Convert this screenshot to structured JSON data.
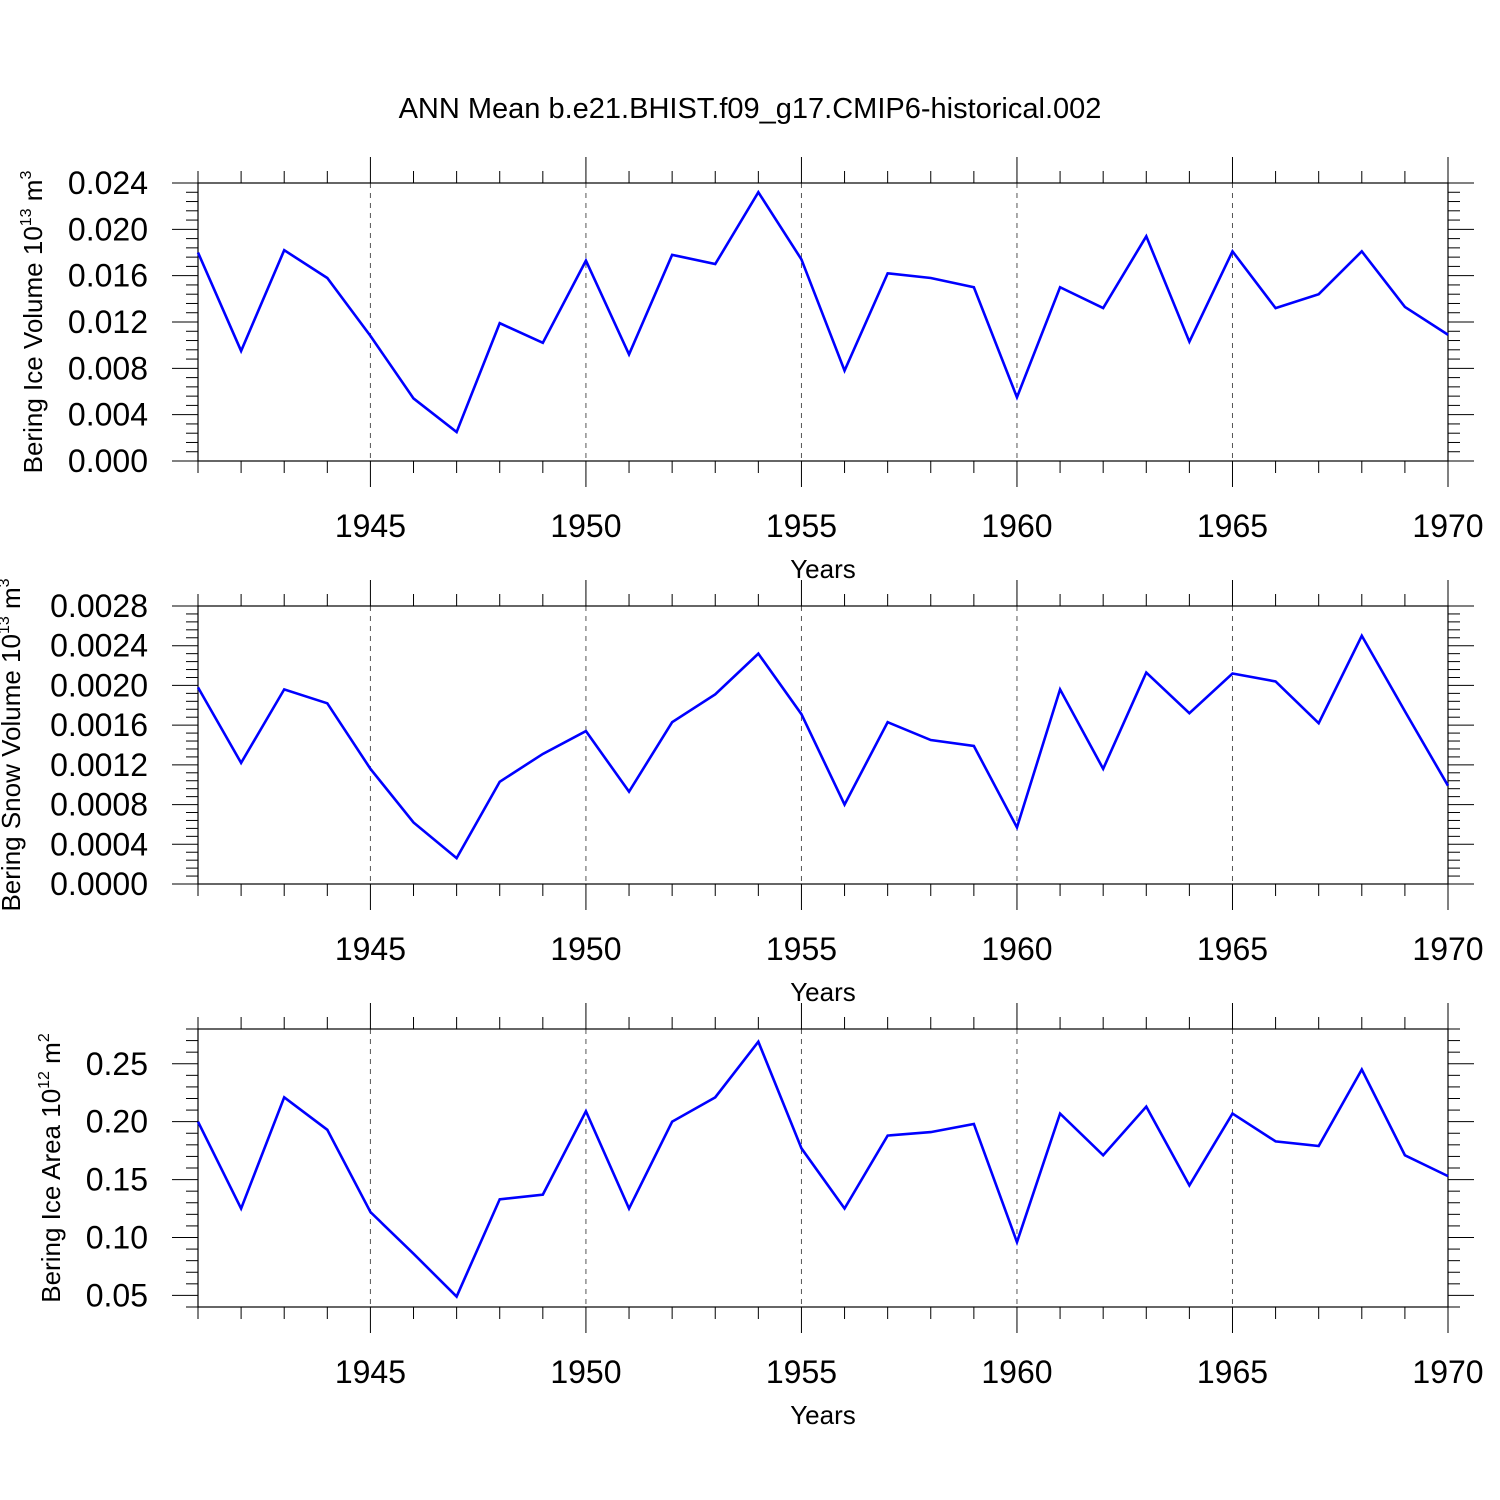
{
  "title": "ANN Mean b.e21.BHIST.f09_g17.CMIP6-historical.002",
  "chart_data": [
    {
      "type": "line",
      "ylabel": {
        "text": "Bering Ice Volume 10",
        "sup": "13",
        "unit": " m",
        "unit_sup": "3"
      },
      "xlabel": "Years",
      "xlim": [
        1941,
        1970
      ],
      "ylim": [
        0.0,
        0.024
      ],
      "yticks": [
        "0.000",
        "0.004",
        "0.008",
        "0.012",
        "0.016",
        "0.020",
        "0.024"
      ],
      "xticks": [
        "1945",
        "1950",
        "1955",
        "1960",
        "1965",
        "1970"
      ],
      "grid_x": "dashed-vertical-at-major-ticks",
      "line_color": "#0000ff",
      "x": [
        1941,
        1942,
        1943,
        1944,
        1945,
        1946,
        1947,
        1948,
        1949,
        1950,
        1951,
        1952,
        1953,
        1954,
        1955,
        1956,
        1957,
        1958,
        1959,
        1960,
        1961,
        1962,
        1963,
        1964,
        1965,
        1966,
        1967,
        1968,
        1969,
        1970
      ],
      "values": [
        0.018,
        0.0095,
        0.0182,
        0.0158,
        0.0108,
        0.0054,
        0.0025,
        0.0119,
        0.0102,
        0.0173,
        0.0092,
        0.0178,
        0.017,
        0.0232,
        0.0174,
        0.0078,
        0.0162,
        0.0158,
        0.015,
        0.0055,
        0.015,
        0.0132,
        0.0194,
        0.0103,
        0.0181,
        0.0132,
        0.0144,
        0.0181,
        0.0133,
        0.0109
      ]
    },
    {
      "type": "line",
      "ylabel": {
        "text": "Bering Snow Volume 10",
        "sup": "13",
        "unit": " m",
        "unit_sup": "3"
      },
      "xlabel": "Years",
      "xlim": [
        1941,
        1970
      ],
      "ylim": [
        0.0,
        0.0028
      ],
      "yticks": [
        "0.0000",
        "0.0004",
        "0.0008",
        "0.0012",
        "0.0016",
        "0.0020",
        "0.0024",
        "0.0028"
      ],
      "xticks": [
        "1945",
        "1950",
        "1955",
        "1960",
        "1965",
        "1970"
      ],
      "grid_x": "dashed-vertical-at-major-ticks",
      "line_color": "#0000ff",
      "x": [
        1941,
        1942,
        1943,
        1944,
        1945,
        1946,
        1947,
        1948,
        1949,
        1950,
        1951,
        1952,
        1953,
        1954,
        1955,
        1956,
        1957,
        1958,
        1959,
        1960,
        1961,
        1962,
        1963,
        1964,
        1965,
        1966,
        1967,
        1968,
        1969,
        1970
      ],
      "values": [
        0.00198,
        0.00122,
        0.00196,
        0.00182,
        0.00116,
        0.00062,
        0.00026,
        0.00103,
        0.00131,
        0.00154,
        0.00093,
        0.00163,
        0.00191,
        0.00232,
        0.00171,
        0.0008,
        0.00163,
        0.00145,
        0.00139,
        0.00057,
        0.00196,
        0.00116,
        0.00213,
        0.00172,
        0.00212,
        0.00204,
        0.00162,
        0.0025,
        0.00174,
        0.00099
      ]
    },
    {
      "type": "line",
      "ylabel": {
        "text": "Bering Ice Area 10",
        "sup": "12",
        "unit": " m",
        "unit_sup": "2"
      },
      "xlabel": "Years",
      "xlim": [
        1941,
        1970
      ],
      "ylim": [
        0.04,
        0.28
      ],
      "yticks": [
        "0.05",
        "0.10",
        "0.15",
        "0.20",
        "0.25"
      ],
      "xticks": [
        "1945",
        "1950",
        "1955",
        "1960",
        "1965",
        "1970"
      ],
      "grid_x": "dashed-vertical-at-major-ticks",
      "line_color": "#0000ff",
      "x": [
        1941,
        1942,
        1943,
        1944,
        1945,
        1946,
        1947,
        1948,
        1949,
        1950,
        1951,
        1952,
        1953,
        1954,
        1955,
        1956,
        1957,
        1958,
        1959,
        1960,
        1961,
        1962,
        1963,
        1964,
        1965,
        1966,
        1967,
        1968,
        1969,
        1970
      ],
      "values": [
        0.2,
        0.125,
        0.221,
        0.193,
        0.122,
        0.086,
        0.049,
        0.133,
        0.137,
        0.209,
        0.125,
        0.2,
        0.221,
        0.269,
        0.177,
        0.125,
        0.188,
        0.191,
        0.198,
        0.096,
        0.207,
        0.171,
        0.213,
        0.145,
        0.207,
        0.183,
        0.179,
        0.245,
        0.171,
        0.153
      ]
    }
  ]
}
